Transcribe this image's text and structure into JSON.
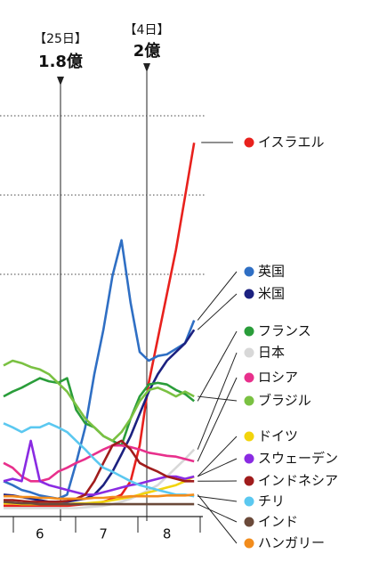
{
  "chart_data": {
    "type": "line",
    "annotations": [
      {
        "date": "【25日】",
        "value": "1.8億"
      },
      {
        "date": "【4日】",
        "value": "2億"
      }
    ],
    "categories": [
      null,
      null,
      null,
      null,
      "6",
      null,
      null,
      null,
      null,
      null,
      null,
      "7",
      null,
      null,
      null,
      null,
      null,
      null,
      "8",
      null,
      null,
      null
    ],
    "ylim": [
      0,
      60
    ],
    "y_gridlines": [
      30,
      40,
      50
    ],
    "series": [
      {
        "name": "イスラエル",
        "color": "#e8211d",
        "values": [
          0.8,
          0.8,
          0.8,
          0.8,
          0.8,
          0.8,
          0.8,
          0.8,
          0.9,
          1.0,
          1.1,
          1.3,
          1.7,
          2.2,
          3.9,
          8.4,
          16.3,
          21.9,
          27.5,
          33.1,
          39.8,
          46.6
        ]
      },
      {
        "name": "英国",
        "color": "#2f6fc4",
        "values": [
          3.9,
          3.4,
          2.8,
          2.5,
          2.1,
          1.9,
          1.7,
          2.2,
          6.2,
          10.7,
          17.4,
          23.0,
          29.8,
          34.3,
          26.4,
          20.2,
          19.1,
          19.7,
          19.9,
          20.6,
          21.3,
          24.2
        ]
      },
      {
        "name": "米国",
        "color": "#1c2180",
        "values": [
          2.2,
          2.1,
          1.9,
          1.7,
          1.5,
          1.3,
          1.3,
          1.3,
          1.5,
          1.7,
          2.2,
          3.4,
          5.1,
          7.3,
          9.6,
          12.4,
          15.2,
          17.4,
          19.1,
          20.2,
          21.3,
          23.0
        ]
      },
      {
        "name": "フランス",
        "color": "#2a9d3a",
        "values": [
          14.6,
          15.2,
          15.7,
          16.3,
          16.9,
          16.5,
          16.3,
          16.9,
          12.9,
          11.2,
          10.7,
          9.6,
          9.0,
          8.4,
          11.8,
          14.6,
          16.1,
          16.3,
          16.1,
          15.4,
          14.9,
          14.0
        ]
      },
      {
        "name": "日本",
        "color": "#d8d8d8",
        "values": [
          0.5,
          0.5,
          0.5,
          0.5,
          0.5,
          0.5,
          0.5,
          0.5,
          0.5,
          0.6,
          0.7,
          0.8,
          1.0,
          1.3,
          1.7,
          2.2,
          2.8,
          3.4,
          4.5,
          5.6,
          6.7,
          7.9
        ]
      },
      {
        "name": "ロシア",
        "color": "#e8308c",
        "values": [
          6.2,
          5.6,
          4.5,
          3.9,
          3.9,
          4.2,
          5.1,
          5.6,
          6.2,
          6.7,
          7.3,
          7.9,
          8.4,
          8.4,
          8.2,
          7.9,
          7.5,
          7.3,
          7.1,
          7.0,
          6.7,
          6.4
        ]
      },
      {
        "name": "ブラジル",
        "color": "#7ac142",
        "values": [
          18.5,
          19.1,
          18.8,
          18.3,
          18.0,
          17.4,
          16.3,
          15.2,
          13.5,
          11.8,
          10.7,
          9.6,
          9.0,
          10.1,
          11.8,
          14.0,
          15.4,
          15.7,
          15.2,
          14.6,
          15.2,
          14.6
        ]
      },
      {
        "name": "ドイツ",
        "color": "#f2d40c",
        "values": [
          1.1,
          1.1,
          1.0,
          1.0,
          1.0,
          1.0,
          1.0,
          1.0,
          1.1,
          1.1,
          1.2,
          1.3,
          1.5,
          1.7,
          1.9,
          2.2,
          2.5,
          2.8,
          3.1,
          3.4,
          3.9,
          4.5
        ]
      },
      {
        "name": "スウェーデン",
        "color": "#8a2be2",
        "values": [
          3.9,
          4.2,
          3.9,
          9.0,
          3.9,
          3.4,
          3.1,
          2.8,
          2.5,
          2.2,
          2.2,
          2.5,
          2.8,
          3.1,
          3.4,
          3.6,
          3.9,
          4.2,
          4.5,
          4.5,
          4.2,
          4.5
        ]
      },
      {
        "name": "インドネシア",
        "color": "#a01c1c",
        "values": [
          1.5,
          1.5,
          1.4,
          1.3,
          1.3,
          1.3,
          1.3,
          1.4,
          1.7,
          2.2,
          3.9,
          6.2,
          8.4,
          9.0,
          7.9,
          6.2,
          5.6,
          5.1,
          4.5,
          4.2,
          3.9,
          3.9
        ]
      },
      {
        "name": "チリ",
        "color": "#5bc8f0",
        "values": [
          11.2,
          10.7,
          10.1,
          10.7,
          10.7,
          11.2,
          10.7,
          10.1,
          9.0,
          7.9,
          6.7,
          5.6,
          5.1,
          4.5,
          3.9,
          3.4,
          3.1,
          2.8,
          2.5,
          2.2,
          2.2,
          2.0
        ]
      },
      {
        "name": "インド",
        "color": "#6b4a3a",
        "values": [
          1.3,
          1.2,
          1.1,
          1.1,
          1.0,
          1.0,
          1.0,
          1.0,
          1.0,
          1.0,
          1.0,
          1.0,
          1.0,
          1.0,
          1.0,
          1.0,
          1.0,
          1.0,
          1.0,
          1.0,
          1.0,
          1.0
        ]
      },
      {
        "name": "ハンガリー",
        "color": "#f28c1c",
        "values": [
          2.0,
          2.0,
          1.9,
          1.9,
          1.8,
          1.8,
          1.7,
          1.7,
          1.7,
          1.7,
          1.8,
          1.8,
          1.9,
          1.9,
          2.0,
          2.0,
          2.0,
          2.0,
          2.1,
          2.1,
          2.1,
          2.2
        ]
      }
    ]
  }
}
